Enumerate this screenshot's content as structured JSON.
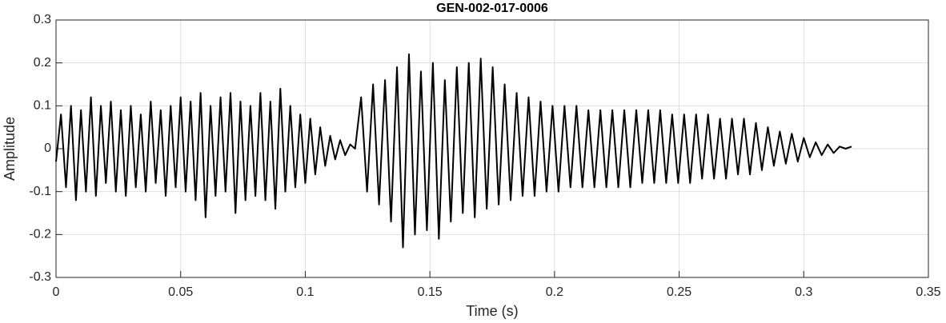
{
  "chart_data": {
    "type": "line",
    "title": "GEN-002-017-0006",
    "xlabel": "Time (s)",
    "ylabel": "Amplitude",
    "xlim": [
      0,
      0.35
    ],
    "ylim": [
      -0.3,
      0.3
    ],
    "xticks": [
      0,
      0.05,
      0.1,
      0.15,
      0.2,
      0.25,
      0.3,
      0.35
    ],
    "yticks": [
      -0.3,
      -0.2,
      -0.1,
      0,
      0.1,
      0.2,
      0.3
    ],
    "grid": true,
    "x": [
      0,
      0.002,
      0.004,
      0.006,
      0.008,
      0.01,
      0.012,
      0.014,
      0.016,
      0.018,
      0.02,
      0.022,
      0.024,
      0.026,
      0.028,
      0.03,
      0.032,
      0.034,
      0.036,
      0.038,
      0.04,
      0.042,
      0.044,
      0.046,
      0.048,
      0.05,
      0.052,
      0.054,
      0.056,
      0.058,
      0.06,
      0.062,
      0.064,
      0.066,
      0.068,
      0.07,
      0.072,
      0.074,
      0.076,
      0.078,
      0.08,
      0.082,
      0.084,
      0.086,
      0.088,
      0.09,
      0.092,
      0.094,
      0.096,
      0.098,
      0.1,
      0.102,
      0.104,
      0.106,
      0.108,
      0.11,
      0.112,
      0.114,
      0.116,
      0.118,
      0.12,
      0.1224,
      0.1248,
      0.1272,
      0.1296,
      0.132,
      0.1344,
      0.1368,
      0.1392,
      0.1416,
      0.144,
      0.1464,
      0.1488,
      0.1512,
      0.1536,
      0.156,
      0.1584,
      0.1608,
      0.1632,
      0.1656,
      0.168,
      0.1704,
      0.1728,
      0.1752,
      0.1776,
      0.18,
      0.1824,
      0.1848,
      0.1872,
      0.1896,
      0.192,
      0.1944,
      0.1968,
      0.1992,
      0.2016,
      0.204,
      0.2064,
      0.2088,
      0.2112,
      0.2136,
      0.216,
      0.2184,
      0.2208,
      0.2232,
      0.2256,
      0.228,
      0.2304,
      0.2328,
      0.2352,
      0.2376,
      0.24,
      0.2424,
      0.2448,
      0.2472,
      0.2496,
      0.252,
      0.2544,
      0.2568,
      0.2592,
      0.2616,
      0.264,
      0.2664,
      0.2688,
      0.2712,
      0.2736,
      0.276,
      0.2784,
      0.2808,
      0.2832,
      0.2856,
      0.288,
      0.2904,
      0.2928,
      0.2952,
      0.2976,
      0.3,
      0.3024,
      0.3048,
      0.3072,
      0.3096,
      0.312,
      0.3144,
      0.3168,
      0.3192
    ],
    "series": [
      {
        "color": "#000000",
        "values": [
          -0.03,
          0.08,
          -0.09,
          0.1,
          -0.12,
          0.09,
          -0.1,
          0.12,
          -0.11,
          0.1,
          -0.08,
          0.11,
          -0.1,
          0.09,
          -0.11,
          0.1,
          -0.09,
          0.08,
          -0.1,
          0.11,
          -0.08,
          0.09,
          -0.11,
          0.1,
          -0.09,
          0.12,
          -0.1,
          0.11,
          -0.12,
          0.13,
          -0.16,
          0.1,
          -0.11,
          0.12,
          -0.1,
          0.13,
          -0.15,
          0.11,
          -0.12,
          0.1,
          -0.11,
          0.13,
          -0.12,
          0.11,
          -0.14,
          0.14,
          -0.1,
          0.1,
          -0.09,
          0.08,
          -0.08,
          0.07,
          -0.06,
          0.05,
          -0.04,
          0.03,
          -0.025,
          0.02,
          -0.015,
          0.01,
          0,
          0.12,
          -0.1,
          0.15,
          -0.13,
          0.16,
          -0.17,
          0.19,
          -0.23,
          0.22,
          -0.2,
          0.18,
          -0.19,
          0.2,
          -0.21,
          0.16,
          -0.17,
          0.19,
          -0.15,
          0.2,
          -0.16,
          0.21,
          -0.14,
          0.19,
          -0.13,
          0.15,
          -0.12,
          0.13,
          -0.11,
          0.12,
          -0.11,
          0.11,
          -0.1,
          0.1,
          -0.1,
          0.1,
          -0.09,
          0.1,
          -0.09,
          0.09,
          -0.09,
          0.09,
          -0.09,
          0.09,
          -0.09,
          0.09,
          -0.09,
          0.09,
          -0.08,
          0.09,
          -0.08,
          0.09,
          -0.08,
          0.08,
          -0.08,
          0.08,
          -0.08,
          0.08,
          -0.07,
          0.08,
          -0.07,
          0.07,
          -0.07,
          0.07,
          -0.06,
          0.07,
          -0.06,
          0.06,
          -0.05,
          0.05,
          -0.04,
          0.04,
          -0.035,
          0.035,
          -0.03,
          0.025,
          -0.02,
          0.015,
          -0.015,
          0.01,
          -0.01,
          0.005,
          0,
          0.005
        ]
      }
    ]
  }
}
